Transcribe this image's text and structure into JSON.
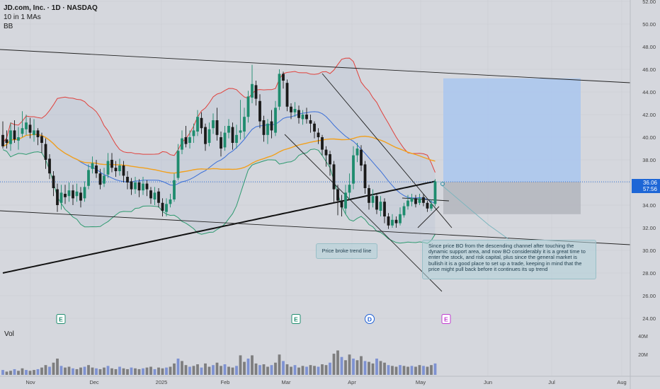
{
  "header": {
    "title": "JD.com, Inc. · 1D · NASDAQ",
    "indicator_1": "10 in 1 MAs",
    "indicator_2": "BB"
  },
  "price_label": {
    "price": "36.06",
    "countdown": "57:56"
  },
  "volume_label": "Vol",
  "annotations": {
    "main_note": "Since price BO from the descending channel after touching the dynamic support area, and now BO considerably it is a great time to enter the stock, and risk capital, plus since the general market is bullish it is a good place to set up a trade, keeping in mind that the price might pull back before it continues its up trend",
    "trend_note": "Price broke trend line"
  },
  "colors": {
    "background": "#d5d7dd",
    "up_candle": "#1e8c6e",
    "down_candle": "#1a1a1a",
    "bb_upper": "#e0413c",
    "bb_lower": "#2e9a6f",
    "bb_basis": "#3b6fd8",
    "ma_orange": "#f2a01c",
    "ma_200": "#111111",
    "volume": "#6f86d0",
    "volume_alt": "#6e6e6e",
    "target_zone": "#a9c7ef",
    "stop_zone": "#b3b6bd",
    "price_badge": "#1d66d6"
  },
  "chart_data": {
    "type": "candlestick",
    "x_axis_labels": [
      "Nov",
      "Dec",
      "2025",
      "Feb",
      "Mar",
      "Apr",
      "May",
      "Jun",
      "Jul",
      "Aug"
    ],
    "y_axis": {
      "min": 24.0,
      "max": 52.0,
      "ticks": [
        "24.00",
        "26.00",
        "28.00",
        "30.00",
        "32.00",
        "34.00",
        "36.00",
        "38.00",
        "40.00",
        "42.00",
        "44.00",
        "46.00",
        "48.00",
        "50.00",
        "52.00"
      ]
    },
    "last_price": 36.06,
    "volume_ticks": [
      "20M",
      "40M"
    ],
    "event_markers": [
      {
        "label": "E",
        "date": "Nov"
      },
      {
        "label": "E",
        "date": "Mar"
      },
      {
        "label": "D",
        "date": "Apr"
      },
      {
        "label": "E",
        "date": "May"
      }
    ],
    "candles": [
      [
        40.2,
        39.2,
        41.4,
        39.0
      ],
      [
        39.8,
        39.5,
        40.6,
        39.0
      ],
      [
        39.4,
        40.6,
        41.3,
        38.8
      ],
      [
        40.6,
        39.8,
        41.5,
        39.5
      ],
      [
        39.7,
        40.0,
        40.9,
        38.9
      ],
      [
        40.3,
        40.8,
        42.3,
        40.0
      ],
      [
        40.7,
        41.3,
        42.0,
        40.2
      ],
      [
        41.1,
        40.4,
        41.7,
        39.9
      ],
      [
        40.2,
        40.6,
        41.6,
        39.6
      ],
      [
        40.6,
        40.0,
        40.8,
        39.3
      ],
      [
        40.1,
        39.5,
        40.4,
        38.6
      ],
      [
        39.4,
        38.0,
        39.9,
        37.2
      ],
      [
        38.1,
        36.8,
        38.5,
        36.3
      ],
      [
        36.6,
        35.5,
        37.0,
        34.8
      ],
      [
        35.4,
        34.0,
        35.9,
        33.4
      ],
      [
        34.2,
        35.1,
        35.8,
        33.6
      ],
      [
        35.0,
        34.7,
        35.8,
        34.1
      ],
      [
        34.8,
        35.3,
        36.0,
        34.3
      ],
      [
        35.3,
        34.6,
        35.8,
        34.0
      ],
      [
        34.8,
        35.2,
        35.9,
        34.3
      ],
      [
        35.1,
        34.4,
        35.6,
        33.8
      ],
      [
        34.6,
        35.6,
        36.1,
        34.3
      ],
      [
        35.7,
        37.1,
        37.6,
        35.4
      ],
      [
        37.2,
        37.7,
        38.3,
        36.8
      ],
      [
        37.5,
        36.8,
        38.0,
        36.4
      ],
      [
        36.8,
        35.8,
        37.2,
        35.4
      ],
      [
        35.9,
        36.6,
        37.3,
        35.6
      ],
      [
        36.7,
        37.9,
        38.6,
        36.4
      ],
      [
        38.0,
        37.3,
        38.6,
        36.9
      ],
      [
        37.3,
        37.0,
        37.9,
        36.5
      ],
      [
        37.0,
        37.5,
        38.1,
        36.6
      ],
      [
        37.5,
        36.6,
        37.9,
        36.0
      ],
      [
        36.5,
        36.0,
        37.0,
        35.4
      ],
      [
        36.1,
        35.4,
        36.4,
        34.9
      ],
      [
        35.4,
        36.0,
        36.5,
        35.0
      ],
      [
        36.0,
        35.3,
        36.3,
        34.7
      ],
      [
        35.3,
        35.9,
        36.5,
        34.9
      ],
      [
        35.9,
        35.4,
        36.2,
        34.8
      ],
      [
        35.3,
        34.6,
        35.6,
        34.1
      ],
      [
        34.5,
        35.1,
        35.6,
        34.0
      ],
      [
        35.2,
        34.2,
        35.5,
        33.8
      ],
      [
        34.2,
        33.5,
        34.6,
        33.0
      ],
      [
        33.4,
        34.1,
        34.6,
        33.0
      ],
      [
        34.1,
        34.5,
        35.0,
        33.8
      ],
      [
        34.5,
        36.2,
        36.8,
        34.3
      ],
      [
        36.4,
        38.8,
        39.4,
        36.2
      ],
      [
        38.9,
        39.9,
        40.6,
        38.5
      ],
      [
        40.0,
        39.4,
        41.0,
        39.1
      ],
      [
        39.5,
        40.0,
        40.6,
        39.0
      ],
      [
        40.1,
        40.6,
        41.2,
        39.5
      ],
      [
        40.5,
        41.8,
        42.4,
        40.1
      ],
      [
        41.7,
        40.8,
        42.2,
        40.3
      ],
      [
        40.9,
        39.4,
        41.2,
        38.8
      ],
      [
        39.5,
        40.7,
        41.3,
        39.2
      ],
      [
        40.8,
        41.5,
        42.1,
        40.3
      ],
      [
        41.5,
        40.2,
        42.6,
        39.7
      ],
      [
        40.0,
        39.0,
        40.5,
        38.3
      ],
      [
        39.1,
        40.4,
        41.0,
        38.8
      ],
      [
        40.4,
        41.0,
        41.6,
        39.9
      ],
      [
        40.9,
        39.5,
        41.3,
        38.9
      ],
      [
        39.5,
        40.2,
        41.1,
        39.0
      ],
      [
        40.4,
        40.6,
        43.3,
        39.8
      ],
      [
        40.5,
        41.8,
        42.6,
        39.9
      ],
      [
        41.8,
        43.6,
        44.1,
        41.3
      ],
      [
        43.5,
        44.7,
        46.4,
        43.0
      ],
      [
        44.6,
        43.4,
        45.0,
        42.8
      ],
      [
        43.2,
        41.4,
        43.8,
        40.8
      ],
      [
        41.5,
        40.2,
        41.9,
        39.6
      ],
      [
        40.2,
        41.2,
        41.6,
        39.4
      ],
      [
        41.4,
        40.6,
        42.4,
        39.9
      ],
      [
        40.4,
        42.6,
        43.2,
        40.1
      ],
      [
        42.7,
        45.6,
        46.0,
        42.4
      ],
      [
        45.6,
        45.0,
        45.8,
        44.3
      ],
      [
        44.8,
        42.7,
        45.1,
        42.3
      ],
      [
        42.7,
        42.2,
        43.0,
        41.6
      ],
      [
        42.2,
        42.5,
        43.1,
        41.8
      ],
      [
        42.4,
        41.7,
        42.8,
        41.2
      ],
      [
        41.6,
        42.0,
        42.4,
        41.1
      ],
      [
        42.0,
        41.6,
        42.6,
        41.2
      ],
      [
        41.5,
        41.2,
        42.0,
        40.4
      ],
      [
        41.2,
        40.5,
        41.4,
        39.9
      ],
      [
        40.4,
        40.0,
        40.8,
        39.4
      ],
      [
        40.0,
        38.9,
        40.2,
        38.4
      ],
      [
        38.9,
        38.4,
        39.2,
        37.4
      ],
      [
        38.5,
        37.6,
        38.8,
        36.6
      ],
      [
        37.6,
        35.4,
        37.9,
        34.2
      ],
      [
        35.4,
        34.4,
        35.8,
        33.1
      ],
      [
        34.4,
        33.8,
        34.9,
        33.0
      ],
      [
        33.7,
        35.1,
        35.8,
        33.2
      ],
      [
        35.1,
        35.8,
        36.8,
        34.5
      ],
      [
        35.9,
        38.4,
        39.2,
        35.4
      ],
      [
        38.4,
        39.0,
        39.5,
        37.8
      ],
      [
        38.9,
        37.5,
        39.3,
        37.0
      ],
      [
        37.6,
        35.5,
        37.9,
        35.0
      ],
      [
        35.5,
        34.2,
        35.8,
        33.6
      ],
      [
        34.2,
        34.8,
        35.4,
        33.8
      ],
      [
        34.8,
        33.6,
        35.0,
        33.2
      ],
      [
        33.5,
        34.3,
        34.8,
        33.0
      ],
      [
        34.3,
        33.0,
        34.6,
        32.4
      ],
      [
        33.0,
        32.2,
        33.3,
        31.9
      ],
      [
        32.2,
        32.7,
        33.2,
        32.0
      ],
      [
        32.7,
        32.4,
        33.0,
        32.0
      ],
      [
        32.4,
        33.2,
        33.8,
        32.2
      ],
      [
        33.1,
        33.9,
        34.2,
        32.9
      ],
      [
        33.9,
        34.4,
        34.9,
        33.6
      ],
      [
        34.3,
        34.6,
        35.0,
        33.9
      ],
      [
        34.6,
        34.1,
        34.9,
        33.8
      ],
      [
        34.2,
        34.6,
        35.0,
        34.0
      ],
      [
        34.7,
        34.2,
        35.0,
        33.9
      ],
      [
        34.2,
        33.7,
        34.4,
        33.4
      ],
      [
        33.7,
        34.1,
        34.5,
        33.5
      ],
      [
        34.1,
        36.1,
        36.3,
        33.9
      ]
    ]
  }
}
